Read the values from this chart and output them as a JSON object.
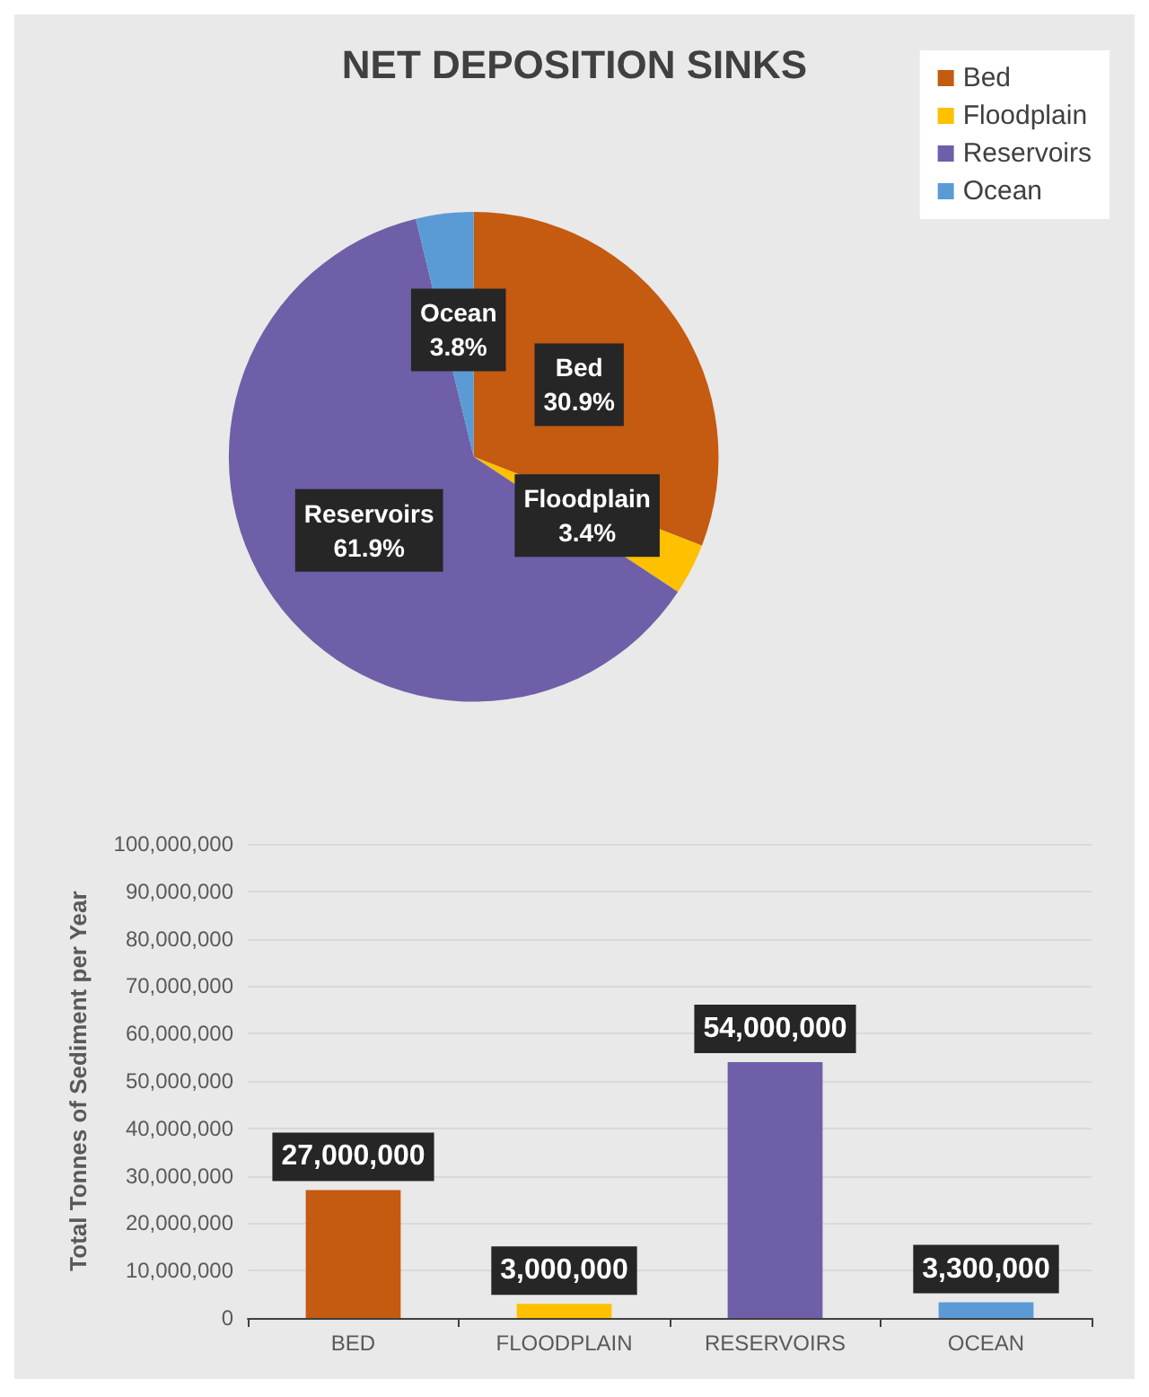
{
  "chart_data": [
    {
      "type": "pie",
      "title": "NET DEPOSITION SINKS",
      "categories": [
        "Bed",
        "Floodplain",
        "Reservoirs",
        "Ocean"
      ],
      "values": [
        30.9,
        3.4,
        61.9,
        3.8
      ],
      "colors": [
        "#c55a11",
        "#ffc000",
        "#6e5fa8",
        "#5b9bd5"
      ],
      "value_labels": [
        "30.9%",
        "3.4%",
        "61.9%",
        "3.8%"
      ],
      "legend": "top right"
    },
    {
      "type": "bar",
      "categories": [
        "BED",
        "FLOODPLAIN",
        "RESERVOIRS",
        "OCEAN"
      ],
      "values": [
        27000000,
        3000000,
        54000000,
        3300000
      ],
      "colors": [
        "#c55a11",
        "#ffc000",
        "#6e5fa8",
        "#5b9bd5"
      ],
      "value_labels": [
        "27,000,000",
        "3,000,000",
        "54,000,000",
        "3,300,000"
      ],
      "ylabel": "Total Tonnes of Sediment per Year",
      "ylim": [
        0,
        100000000
      ],
      "yticks": [
        {
          "value": 0,
          "label": "0"
        },
        {
          "value": 10000000,
          "label": "10,000,000"
        },
        {
          "value": 20000000,
          "label": "20,000,000"
        },
        {
          "value": 30000000,
          "label": "30,000,000"
        },
        {
          "value": 40000000,
          "label": "40,000,000"
        },
        {
          "value": 50000000,
          "label": "50,000,000"
        },
        {
          "value": 60000000,
          "label": "60,000,000"
        },
        {
          "value": 70000000,
          "label": "70,000,000"
        },
        {
          "value": 80000000,
          "label": "80,000,000"
        },
        {
          "value": 90000000,
          "label": "90,000,000"
        },
        {
          "value": 100000000,
          "label": "100,000,000"
        }
      ],
      "grid": "y"
    }
  ]
}
